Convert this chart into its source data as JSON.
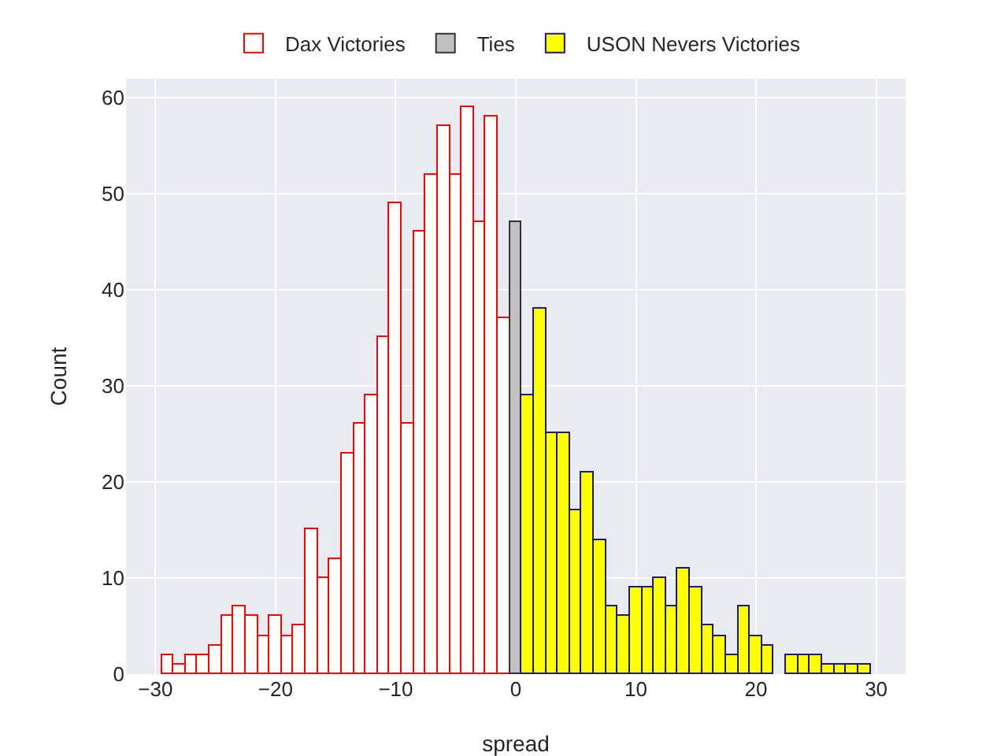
{
  "chart_data": {
    "type": "histogram",
    "xlabel": "spread",
    "ylabel": "Count",
    "bins": [
      -29.5,
      -28.5,
      -27.5,
      -26.5,
      -25.5,
      -24.5,
      -23.5,
      -22.5,
      -21.5,
      -20.5,
      -19.5,
      -18.5,
      -17.5,
      -16.5,
      -15.5,
      -14.5,
      -13.5,
      -12.5,
      -11.5,
      -10.5,
      -9.5,
      -8.5,
      -7.5,
      -6.5,
      -5.5,
      -4.5,
      -3.5,
      -2.5,
      -1.5,
      -0.5,
      0.5,
      1.5,
      2.5,
      3.5,
      4.5,
      5.5,
      6.5,
      7.5,
      8.5,
      9.5,
      10.5,
      11.5,
      12.5,
      13.5,
      14.5,
      15.5,
      16.5,
      17.5,
      18.5,
      19.5,
      20.5,
      21.5,
      22.5,
      23.5,
      24.5,
      25.5,
      26.5,
      27.5,
      28.5,
      29.5
    ],
    "series": [
      {
        "name": "Dax Victories",
        "color": "#ff0000",
        "values": [
          2,
          1,
          2,
          2,
          3,
          6,
          7,
          6,
          4,
          6,
          4,
          5,
          15,
          10,
          12,
          23,
          26,
          29,
          35,
          49,
          26,
          46,
          52,
          57,
          52,
          59,
          47,
          58,
          37,
          null,
          null,
          null,
          null,
          null,
          null,
          null,
          null,
          null,
          null,
          null,
          null,
          null,
          null,
          null,
          null,
          null,
          null,
          null,
          null,
          null,
          null,
          null,
          null,
          null,
          null,
          null,
          null,
          null,
          null
        ]
      },
      {
        "name": "Ties",
        "color": "#c0c0c0",
        "values": [
          null,
          null,
          null,
          null,
          null,
          null,
          null,
          null,
          null,
          null,
          null,
          null,
          null,
          null,
          null,
          null,
          null,
          null,
          null,
          null,
          null,
          null,
          null,
          null,
          null,
          null,
          null,
          null,
          null,
          47,
          null,
          null,
          null,
          null,
          null,
          null,
          null,
          null,
          null,
          null,
          null,
          null,
          null,
          null,
          null,
          null,
          null,
          null,
          null,
          null,
          null,
          null,
          null,
          null,
          null,
          null,
          null,
          null,
          null
        ]
      },
      {
        "name": "USON Nevers Victories",
        "color": "#ffff00",
        "values": [
          null,
          null,
          null,
          null,
          null,
          null,
          null,
          null,
          null,
          null,
          null,
          null,
          null,
          null,
          null,
          null,
          null,
          null,
          null,
          null,
          null,
          null,
          null,
          null,
          null,
          null,
          null,
          null,
          null,
          null,
          29,
          38,
          25,
          25,
          17,
          21,
          14,
          7,
          6,
          9,
          9,
          10,
          7,
          11,
          9,
          5,
          4,
          2,
          7,
          4,
          3,
          0,
          2,
          2,
          2,
          1,
          1,
          1,
          1
        ]
      }
    ],
    "xlim": [
      -32.45,
      32.45
    ],
    "xticks": [
      -30,
      -20,
      -10,
      0,
      10,
      20,
      30
    ],
    "ylim": [
      0,
      61.95
    ],
    "yticks": [
      0,
      10,
      20,
      30,
      40,
      50,
      60
    ],
    "grid": true,
    "legend": "top"
  }
}
